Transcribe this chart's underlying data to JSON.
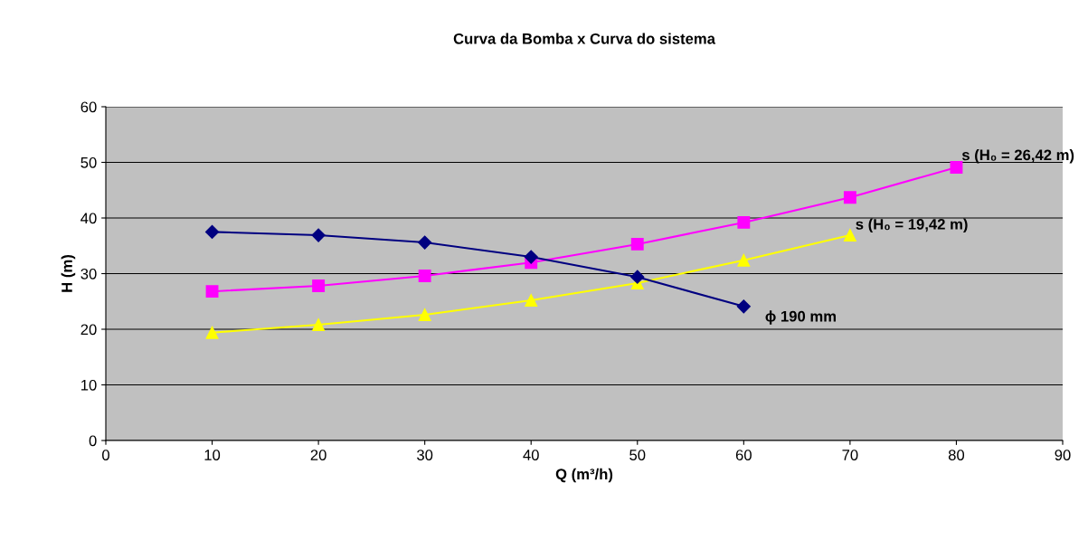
{
  "chart_data": {
    "type": "line",
    "title": "Curva da Bomba x Curva do sistema",
    "xlabel": "Q (m³/h)",
    "ylabel": "H (m)",
    "xlim": [
      0,
      90
    ],
    "xticks": [
      0,
      10,
      20,
      30,
      40,
      50,
      60,
      70,
      80,
      90
    ],
    "ylim": [
      0,
      60
    ],
    "yticks": [
      0,
      10,
      20,
      30,
      40,
      50,
      60
    ],
    "grid": "y",
    "legend": false,
    "line_style": "solid",
    "series": [
      {
        "name": "ϕ 190 mm",
        "color": "#000080",
        "marker": "diamond",
        "x": [
          10,
          20,
          30,
          40,
          50,
          60
        ],
        "values": [
          37.5,
          36.9,
          35.6,
          33.0,
          29.4,
          24.1
        ]
      },
      {
        "name": "s (H₀ = 26,42 m)",
        "color": "#ff00ff",
        "marker": "square",
        "x": [
          10,
          20,
          30,
          40,
          50,
          60,
          70,
          80
        ],
        "values": [
          26.8,
          27.8,
          29.6,
          32.0,
          35.3,
          39.2,
          43.7,
          49.1
        ]
      },
      {
        "name": "s (H₀ = 19,42 m)",
        "color": "#ffff00",
        "marker": "triangle",
        "x": [
          10,
          20,
          30,
          40,
          50,
          60,
          70
        ],
        "values": [
          19.4,
          20.8,
          22.6,
          25.2,
          28.3,
          32.4,
          36.9
        ]
      }
    ]
  }
}
